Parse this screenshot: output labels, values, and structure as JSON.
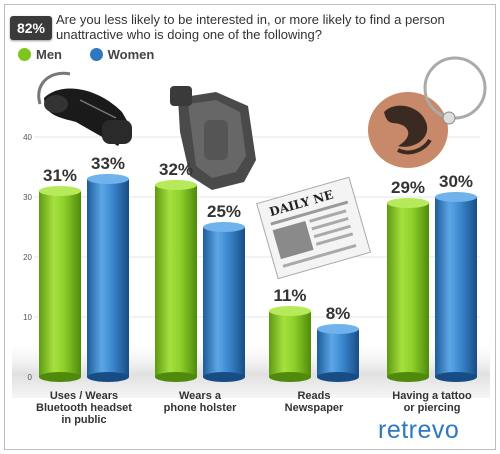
{
  "badge": "82%",
  "question_text": "Are you less likely to be interested in, or more likely to find a person unattractive who is doing one of the following?",
  "brand": "retrevo",
  "colors": {
    "men": "#7ec51e",
    "women": "#2f78c1"
  },
  "icons": [
    "bluetooth-headset-icon",
    "phone-holster-icon",
    "newspaper-icon",
    "tattoo-piercing-icon"
  ],
  "chart_data": {
    "type": "bar",
    "title": "",
    "categories": [
      "Uses / Wears Bluetooth headset in public",
      "Wears a phone holster",
      "Reads Newspaper",
      "Having a tattoo or piercing"
    ],
    "category_lines": [
      [
        "Uses / Wears",
        "Bluetooth headset",
        "in public"
      ],
      [
        "Wears a",
        "phone holster"
      ],
      [
        "Reads",
        "Newspaper"
      ],
      [
        "Having a tattoo",
        "or piercing"
      ]
    ],
    "series": [
      {
        "name": "Men",
        "values": [
          31,
          32,
          11,
          29
        ],
        "labels": [
          "31%",
          "32%",
          "11%",
          "29%"
        ]
      },
      {
        "name": "Women",
        "values": [
          33,
          25,
          8,
          30
        ],
        "labels": [
          "33%",
          "25%",
          "8%",
          "30%"
        ]
      }
    ],
    "yticks": [
      0,
      10,
      20,
      30,
      40
    ],
    "ylim": [
      0,
      50
    ],
    "xlabel": "",
    "ylabel": "",
    "legend_position": "top-left"
  }
}
